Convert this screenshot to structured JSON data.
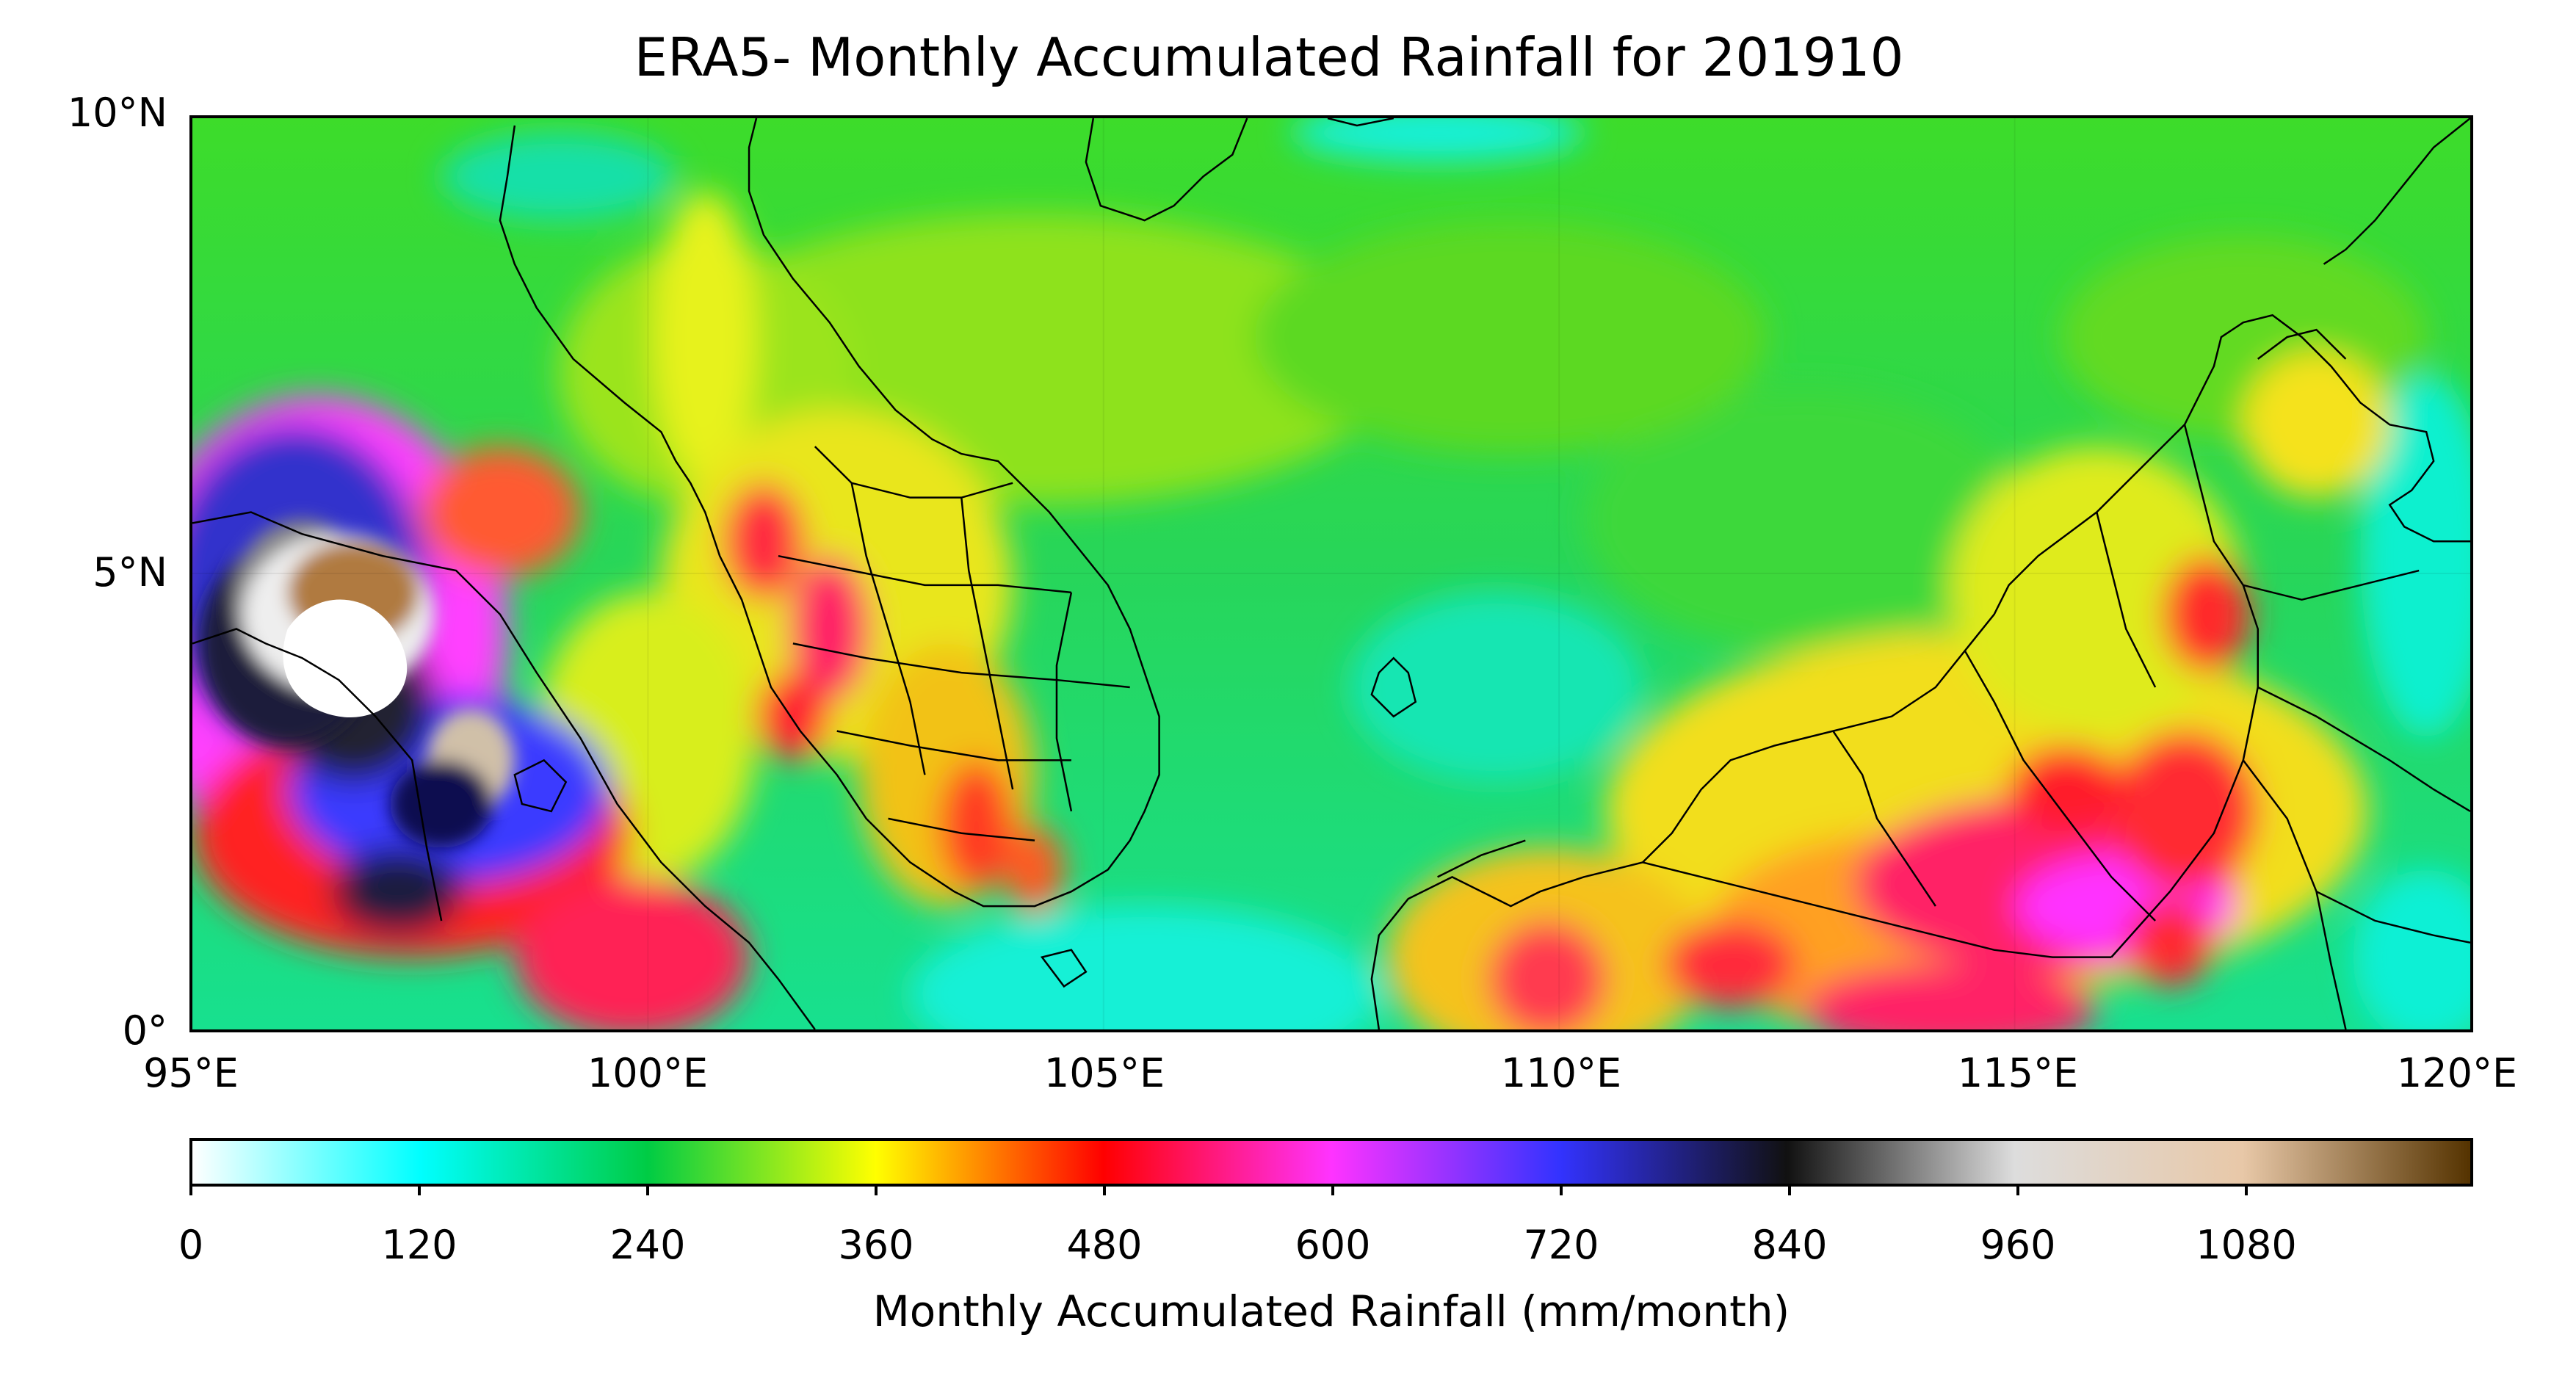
{
  "title": "ERA5- Monthly Accumulated Rainfall for 201910",
  "map": {
    "lat_ticks": [
      "10°N",
      "5°N",
      "0°"
    ],
    "lon_ticks": [
      "95°E",
      "100°E",
      "105°E",
      "110°E",
      "115°E",
      "120°E"
    ],
    "extent_lon": [
      95,
      120
    ],
    "extent_lat": [
      0,
      10
    ]
  },
  "colorbar": {
    "label": "Monthly Accumulated Rainfall (mm/month)",
    "ticks": [
      "0",
      "120",
      "240",
      "360",
      "480",
      "600",
      "720",
      "840",
      "960",
      "1080"
    ],
    "range": [
      0,
      1200
    ],
    "colormap": [
      "#ffffff",
      "#00ffff",
      "#00cc44",
      "#ffff00",
      "#ff0000",
      "#ff33ff",
      "#3333ff",
      "#111111",
      "#dddddd",
      "#e8c8a8",
      "#553300"
    ]
  }
}
